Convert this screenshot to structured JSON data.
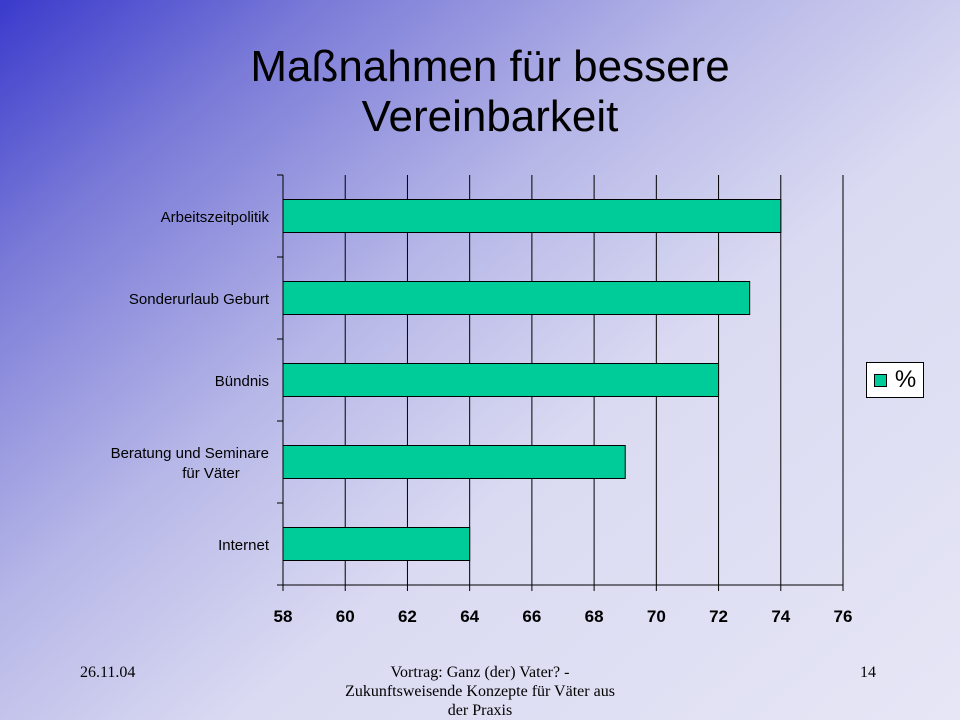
{
  "slide": {
    "title": "Maßnahmen für bessere Vereinbarkeit"
  },
  "chart_data": {
    "type": "bar",
    "orientation": "horizontal",
    "categories": [
      "Arbeitszeitpolitik",
      "Sonderurlaub Geburt",
      "Bündnis",
      "Beratung und Seminare für Väter",
      "Internet"
    ],
    "series": [
      {
        "name": "%",
        "values": [
          74,
          73,
          72,
          69,
          64
        ]
      }
    ],
    "xlim": [
      58,
      76
    ],
    "xticks": [
      58,
      60,
      62,
      64,
      66,
      68,
      70,
      72,
      74,
      76
    ],
    "grid": true,
    "legend_position": "right",
    "bar_color": "#00cc99"
  },
  "footer": {
    "date": "26.11.04",
    "talk": "Vortrag: Ganz (der) Vater? - Zukunftsweisende Konzepte für Väter aus der Praxis",
    "page": "14"
  }
}
